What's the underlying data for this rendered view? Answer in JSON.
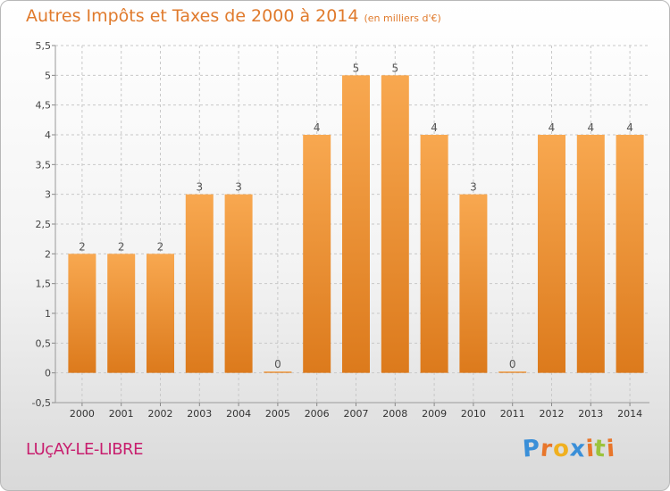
{
  "header": {
    "title": "Autres Impôts et Taxes de 2000 à 2014",
    "unit": "(en milliers d'€)"
  },
  "footer": {
    "location": "LUçAY-LE-LIBRE",
    "brand": {
      "letters": [
        "P",
        "r",
        "o",
        "x",
        "i",
        "t",
        "i"
      ],
      "colors": [
        "#3a8fd8",
        "#e8762b",
        "#f0b020",
        "#3a8fd8",
        "#e8762b",
        "#9bc33b",
        "#e8762b"
      ]
    }
  },
  "colors": {
    "bar_light": "#f8a850",
    "bar_dark": "#dc7a1c",
    "title": "#e07a2c",
    "location": "#c81e6e",
    "grid": "#c8c8c8"
  },
  "chart_data": {
    "type": "bar",
    "categories": [
      "2000",
      "2001",
      "2002",
      "2003",
      "2004",
      "2005",
      "2006",
      "2007",
      "2008",
      "2009",
      "2010",
      "2011",
      "2012",
      "2013",
      "2014"
    ],
    "values": [
      2,
      2,
      2,
      3,
      3,
      0,
      4,
      5,
      5,
      4,
      3,
      0,
      4,
      4,
      4
    ],
    "data_labels": [
      "2",
      "2",
      "2",
      "3",
      "3",
      "0",
      "4",
      "5",
      "5",
      "4",
      "3",
      "0",
      "4",
      "4",
      "4"
    ],
    "yticks": [
      -0.5,
      0,
      0.5,
      1,
      1.5,
      2,
      2.5,
      3,
      3.5,
      4,
      4.5,
      5,
      5.5
    ],
    "ytick_labels": [
      "-0,5",
      "0",
      "0,5",
      "1",
      "1,5",
      "2",
      "2,5",
      "3",
      "3,5",
      "4",
      "4,5",
      "5",
      "5,5"
    ],
    "ylim": [
      -0.5,
      5.5
    ],
    "title": "Autres Impôts et Taxes de 2000 à 2014",
    "xlabel": "",
    "ylabel": "",
    "grid": true,
    "legend": "none"
  }
}
